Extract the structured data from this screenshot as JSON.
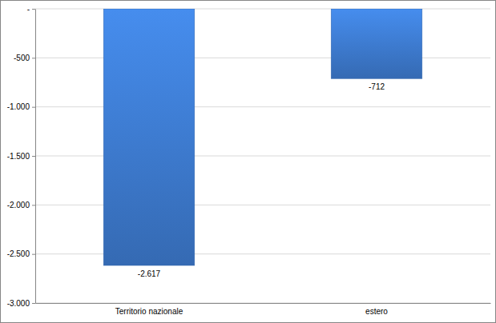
{
  "chart_data": {
    "type": "bar",
    "categories": [
      "Territorio nazionale",
      "estero"
    ],
    "values": [
      -2617,
      -712
    ],
    "value_labels": [
      "-2.617",
      "-712"
    ],
    "data_labels": true,
    "color": "#3f7fd6",
    "ylim": [
      -3000,
      0
    ],
    "yticks": [
      {
        "value": -3000,
        "label": "-3.000"
      },
      {
        "value": -2500,
        "label": "-2.500"
      },
      {
        "value": -2000,
        "label": "-2.000"
      },
      {
        "value": -1500,
        "label": "-1.500"
      },
      {
        "value": -1000,
        "label": "-1.000"
      },
      -500,
      {
        "value": 0,
        "label": "-"
      }
    ],
    "grid": true
  }
}
